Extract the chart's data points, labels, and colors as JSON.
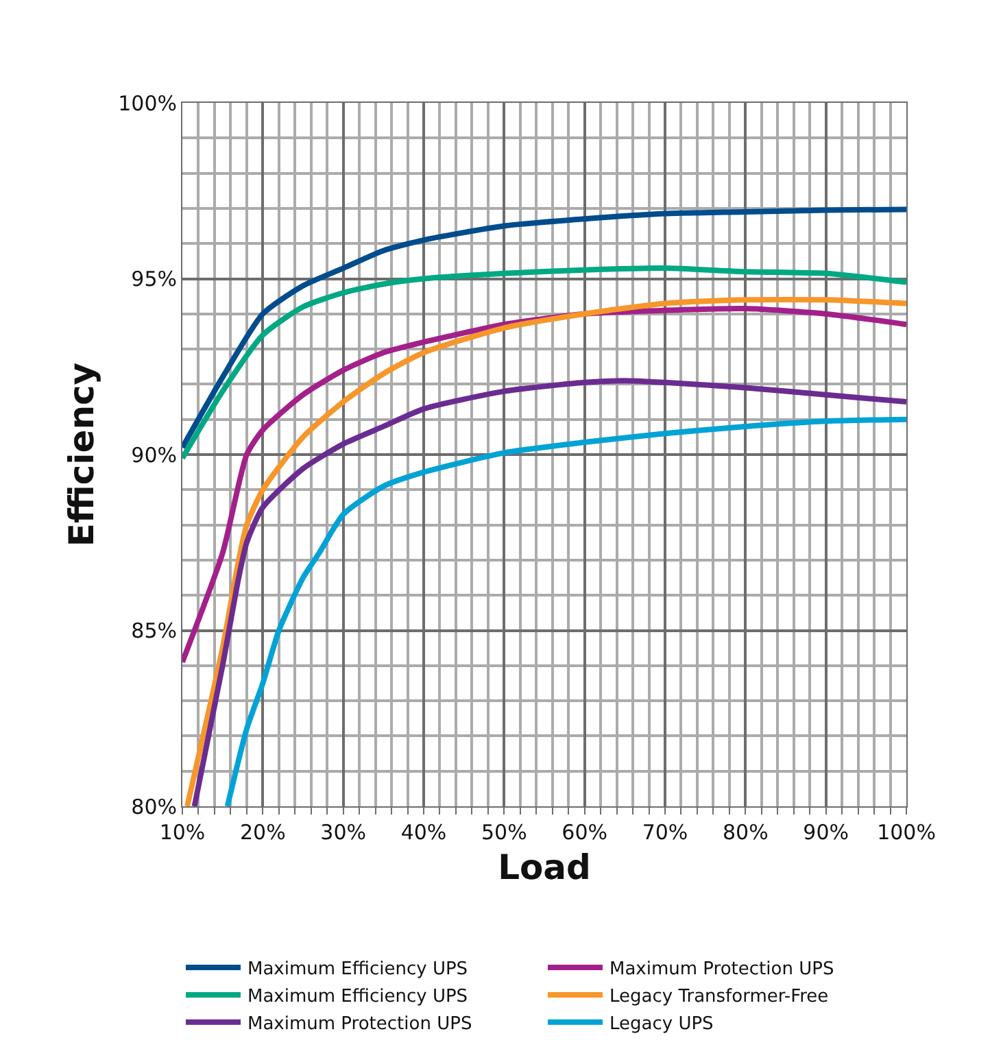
{
  "chart_data": {
    "type": "line",
    "xlabel": "Load",
    "ylabel": "Efficiency",
    "xlim": [
      10,
      100
    ],
    "ylim": [
      80,
      100
    ],
    "xticks": [
      {
        "value": 10,
        "label": "10%"
      },
      {
        "value": 20,
        "label": "20%"
      },
      {
        "value": 30,
        "label": "30%"
      },
      {
        "value": 40,
        "label": "40%"
      },
      {
        "value": 50,
        "label": "50%"
      },
      {
        "value": 60,
        "label": "60%"
      },
      {
        "value": 70,
        "label": "70%"
      },
      {
        "value": 80,
        "label": "80%"
      },
      {
        "value": 90,
        "label": "90%"
      },
      {
        "value": 100,
        "label": "100%"
      }
    ],
    "yticks": [
      {
        "value": 80,
        "label": "80%"
      },
      {
        "value": 85,
        "label": "85%"
      },
      {
        "value": 90,
        "label": "90%"
      },
      {
        "value": 95,
        "label": "95%"
      },
      {
        "value": 100,
        "label": "100%"
      }
    ],
    "grid": true,
    "legend": "bottom",
    "marker": "none",
    "line_style": "solid",
    "series": [
      {
        "name": "Maximum Efficiency UPS",
        "color": "#004c8c",
        "x": [
          10,
          15,
          20,
          25,
          30,
          35,
          40,
          50,
          60,
          70,
          80,
          90,
          100
        ],
        "values": [
          90.2,
          92.2,
          94.0,
          94.8,
          95.3,
          95.8,
          96.1,
          96.5,
          96.7,
          96.85,
          96.9,
          96.95,
          96.97
        ]
      },
      {
        "name": "Maximum Protection UPS",
        "color": "#a3208a",
        "x": [
          10,
          15,
          18,
          20,
          25,
          30,
          35,
          40,
          50,
          60,
          70,
          80,
          90,
          100
        ],
        "values": [
          84.1,
          87.2,
          90.0,
          90.7,
          91.7,
          92.4,
          92.9,
          93.2,
          93.7,
          94.0,
          94.1,
          94.15,
          94.0,
          93.7
        ]
      },
      {
        "name": "Maximum Efficiency UPS",
        "color": "#00a884",
        "x": [
          10,
          15,
          20,
          25,
          30,
          35,
          40,
          50,
          60,
          70,
          80,
          90,
          100
        ],
        "values": [
          89.9,
          91.8,
          93.4,
          94.2,
          94.6,
          94.85,
          95.0,
          95.15,
          95.25,
          95.3,
          95.2,
          95.15,
          94.9
        ]
      },
      {
        "name": "Legacy Transformer-Free",
        "color": "#f7962a",
        "x": [
          10.6,
          15,
          17,
          18,
          20,
          25,
          30,
          35,
          40,
          50,
          60,
          70,
          80,
          90,
          100
        ],
        "values": [
          80.0,
          84.5,
          87.0,
          88.0,
          89.0,
          90.5,
          91.5,
          92.3,
          92.9,
          93.6,
          94.0,
          94.3,
          94.4,
          94.4,
          94.3
        ]
      },
      {
        "name": "Maximum Protection UPS",
        "color": "#6a2c91",
        "x": [
          11.5,
          15,
          17,
          18,
          20,
          25,
          30,
          35,
          40,
          50,
          60,
          65,
          70,
          80,
          90,
          100
        ],
        "values": [
          80.0,
          84.0,
          86.5,
          87.5,
          88.5,
          89.6,
          90.3,
          90.8,
          91.3,
          91.8,
          92.05,
          92.1,
          92.05,
          91.9,
          91.7,
          91.5
        ]
      },
      {
        "name": "Legacy UPS",
        "color": "#00a3d6",
        "x": [
          15.6,
          18,
          20,
          22,
          25,
          27,
          30,
          35,
          40,
          50,
          60,
          70,
          80,
          90,
          100
        ],
        "values": [
          80.0,
          82.2,
          83.5,
          85.0,
          86.5,
          87.2,
          88.3,
          89.1,
          89.5,
          90.05,
          90.35,
          90.6,
          90.8,
          90.95,
          91.0
        ]
      }
    ]
  }
}
